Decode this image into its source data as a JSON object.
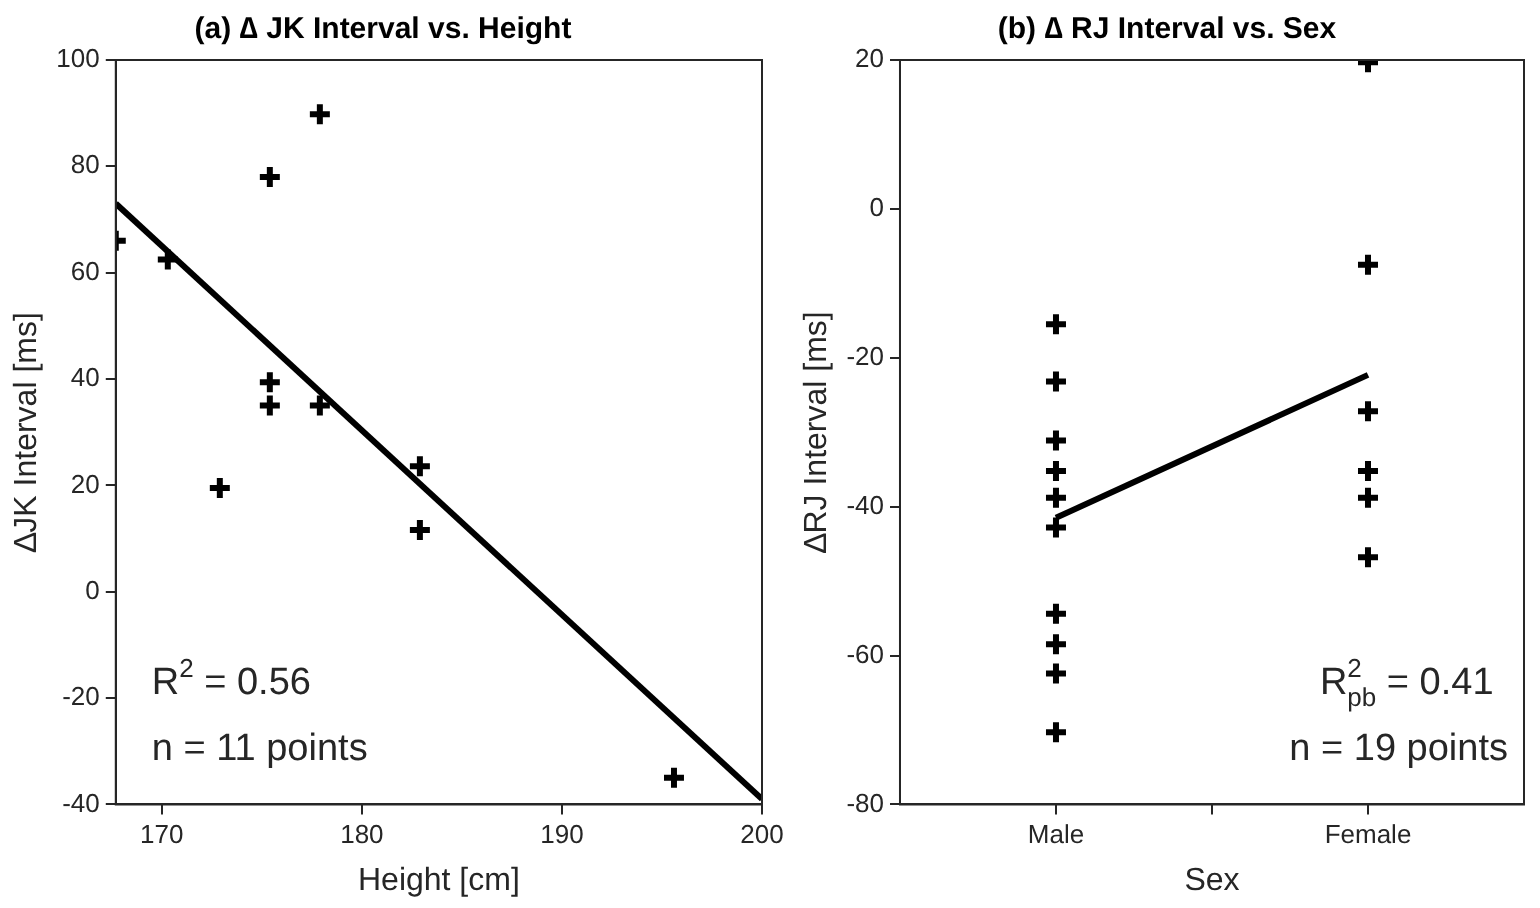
{
  "chart_data": [
    {
      "type": "scatter",
      "title": "(a) ∆ JK Interval vs. Height",
      "xlabel": "Height [cm]",
      "ylabel": "∆JK Interval [ms]",
      "grid": false,
      "legend": false,
      "xlim": [
        167.7,
        200
      ],
      "xticks": [
        170,
        180,
        190,
        200
      ],
      "ylim": [
        -40,
        100
      ],
      "yticks": [
        -40,
        -20,
        0,
        20,
        40,
        60,
        80,
        100
      ],
      "series": [
        {
          "type": "scatter",
          "marker": "cross",
          "color": "#000000",
          "x": [
            167.7,
            170.3,
            172.9,
            175.4,
            175.4,
            175.4,
            177.9,
            177.9,
            182.9,
            182.9,
            195.6
          ],
          "values": [
            66,
            62.5,
            19.5,
            78,
            39.4,
            35,
            89.8,
            35,
            23.6,
            11.6,
            -35
          ]
        },
        {
          "type": "line",
          "marker": "none",
          "color": "#000000",
          "x": [
            167.7,
            200
          ],
          "values": [
            73,
            -39
          ]
        }
      ],
      "annotations": [
        "R$^{2}$ = 0.56",
        "n = 11 points"
      ]
    },
    {
      "type": "scatter",
      "title": "(b) ∆ RJ Interval vs. Sex",
      "xlabel": "Sex",
      "ylabel": "∆RJ Interval [ms]",
      "grid": false,
      "legend": false,
      "categories": [
        "Male",
        "Female"
      ],
      "ylim": [
        -80,
        20
      ],
      "yticks": [
        -80,
        -60,
        -40,
        -20,
        0,
        20
      ],
      "series": [
        {
          "type": "scatter",
          "marker": "cross",
          "color": "#000000",
          "x": [
            "Male",
            "Male",
            "Male",
            "Male",
            "Male",
            "Male",
            "Male",
            "Male",
            "Male",
            "Male",
            "Female",
            "Female",
            "Female",
            "Female",
            "Female",
            "Female"
          ],
          "values": [
            -15.5,
            -23.2,
            -31.1,
            -35.2,
            -38.8,
            -42.8,
            -54.4,
            -58.5,
            -62.4,
            -70.3,
            19.7,
            -7.5,
            -27.2,
            -35.2,
            -38.8,
            -46.8
          ]
        },
        {
          "type": "line",
          "marker": "none",
          "color": "#000000",
          "x": [
            "Male",
            "Female"
          ],
          "values": [
            -41.5,
            -22.3
          ]
        }
      ],
      "annotations": [
        "R$^{2}$$_{pb}$ = 0.41",
        "n = 19 points"
      ]
    }
  ]
}
